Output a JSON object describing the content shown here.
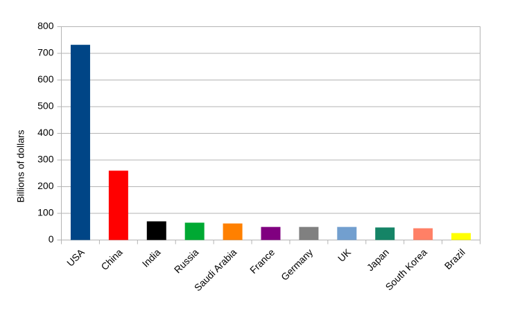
{
  "chart_data": {
    "type": "bar",
    "y_label": "Billions of dollars",
    "categories": [
      "USA",
      "China",
      "India",
      "Russia",
      "Saudi Arabia",
      "France",
      "Germany",
      "UK",
      "Japan",
      "South Korea",
      "Brazil"
    ],
    "values": [
      732,
      260,
      70,
      65,
      62,
      49,
      49,
      49,
      47,
      44,
      26
    ],
    "colors": [
      "#004586",
      "#ff0000",
      "#000000",
      "#00a933",
      "#ff8000",
      "#800080",
      "#808080",
      "#729fcf",
      "#158466",
      "#ff8066",
      "#ffff00"
    ],
    "ylim": [
      0,
      800
    ],
    "yticks": [
      0,
      100,
      200,
      300,
      400,
      500,
      600,
      700,
      800
    ],
    "grid": true
  }
}
